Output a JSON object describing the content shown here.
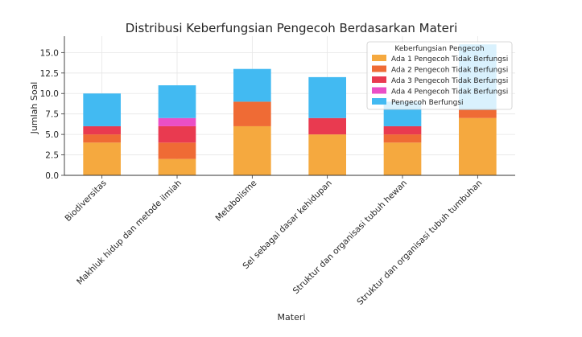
{
  "chart_data": {
    "type": "bar",
    "stacked": true,
    "title": "Distribusi Keberfungsian Pengecoh Berdasarkan Materi",
    "xlabel": "Materi",
    "ylabel": "Jumlah Soal",
    "ylim": [
      0,
      17
    ],
    "yticks": [
      "0.0",
      "2.5",
      "5.0",
      "7.5",
      "10.0",
      "12.5",
      "15.0"
    ],
    "grid": true,
    "legend_position": "top-right",
    "legend_title": "Keberfungsian Pengecoh",
    "categories": [
      "Biodiversitas",
      "Makhluk hidup dan metode ilmiah",
      "Metabolisme",
      "Sel sebagai dasar kehidupan",
      "Struktur dan organisasi tubuh hewan",
      "Struktur dan organisasi tubuh tumbuhan"
    ],
    "series": [
      {
        "name": "Ada 1 Pengecoh Tidak Berfungsi",
        "color": "#f5a93f",
        "values": [
          4,
          2,
          6,
          5,
          4,
          7
        ]
      },
      {
        "name": "Ada 2 Pengecoh Tidak Berfungsi",
        "color": "#ef6b35",
        "values": [
          1,
          2,
          3,
          0,
          1,
          1
        ]
      },
      {
        "name": "Ada 3 Pengecoh Tidak Berfungsi",
        "color": "#e93a50",
        "values": [
          1,
          2,
          0,
          2,
          1,
          0
        ]
      },
      {
        "name": "Ada 4 Pengecoh Tidak Berfungsi",
        "color": "#ea4fc6",
        "values": [
          0,
          1,
          0,
          0,
          0,
          0
        ]
      },
      {
        "name": "Pengecoh Berfungsi",
        "color": "#42baf2",
        "values": [
          4,
          4,
          4,
          5,
          3,
          8
        ]
      }
    ]
  }
}
